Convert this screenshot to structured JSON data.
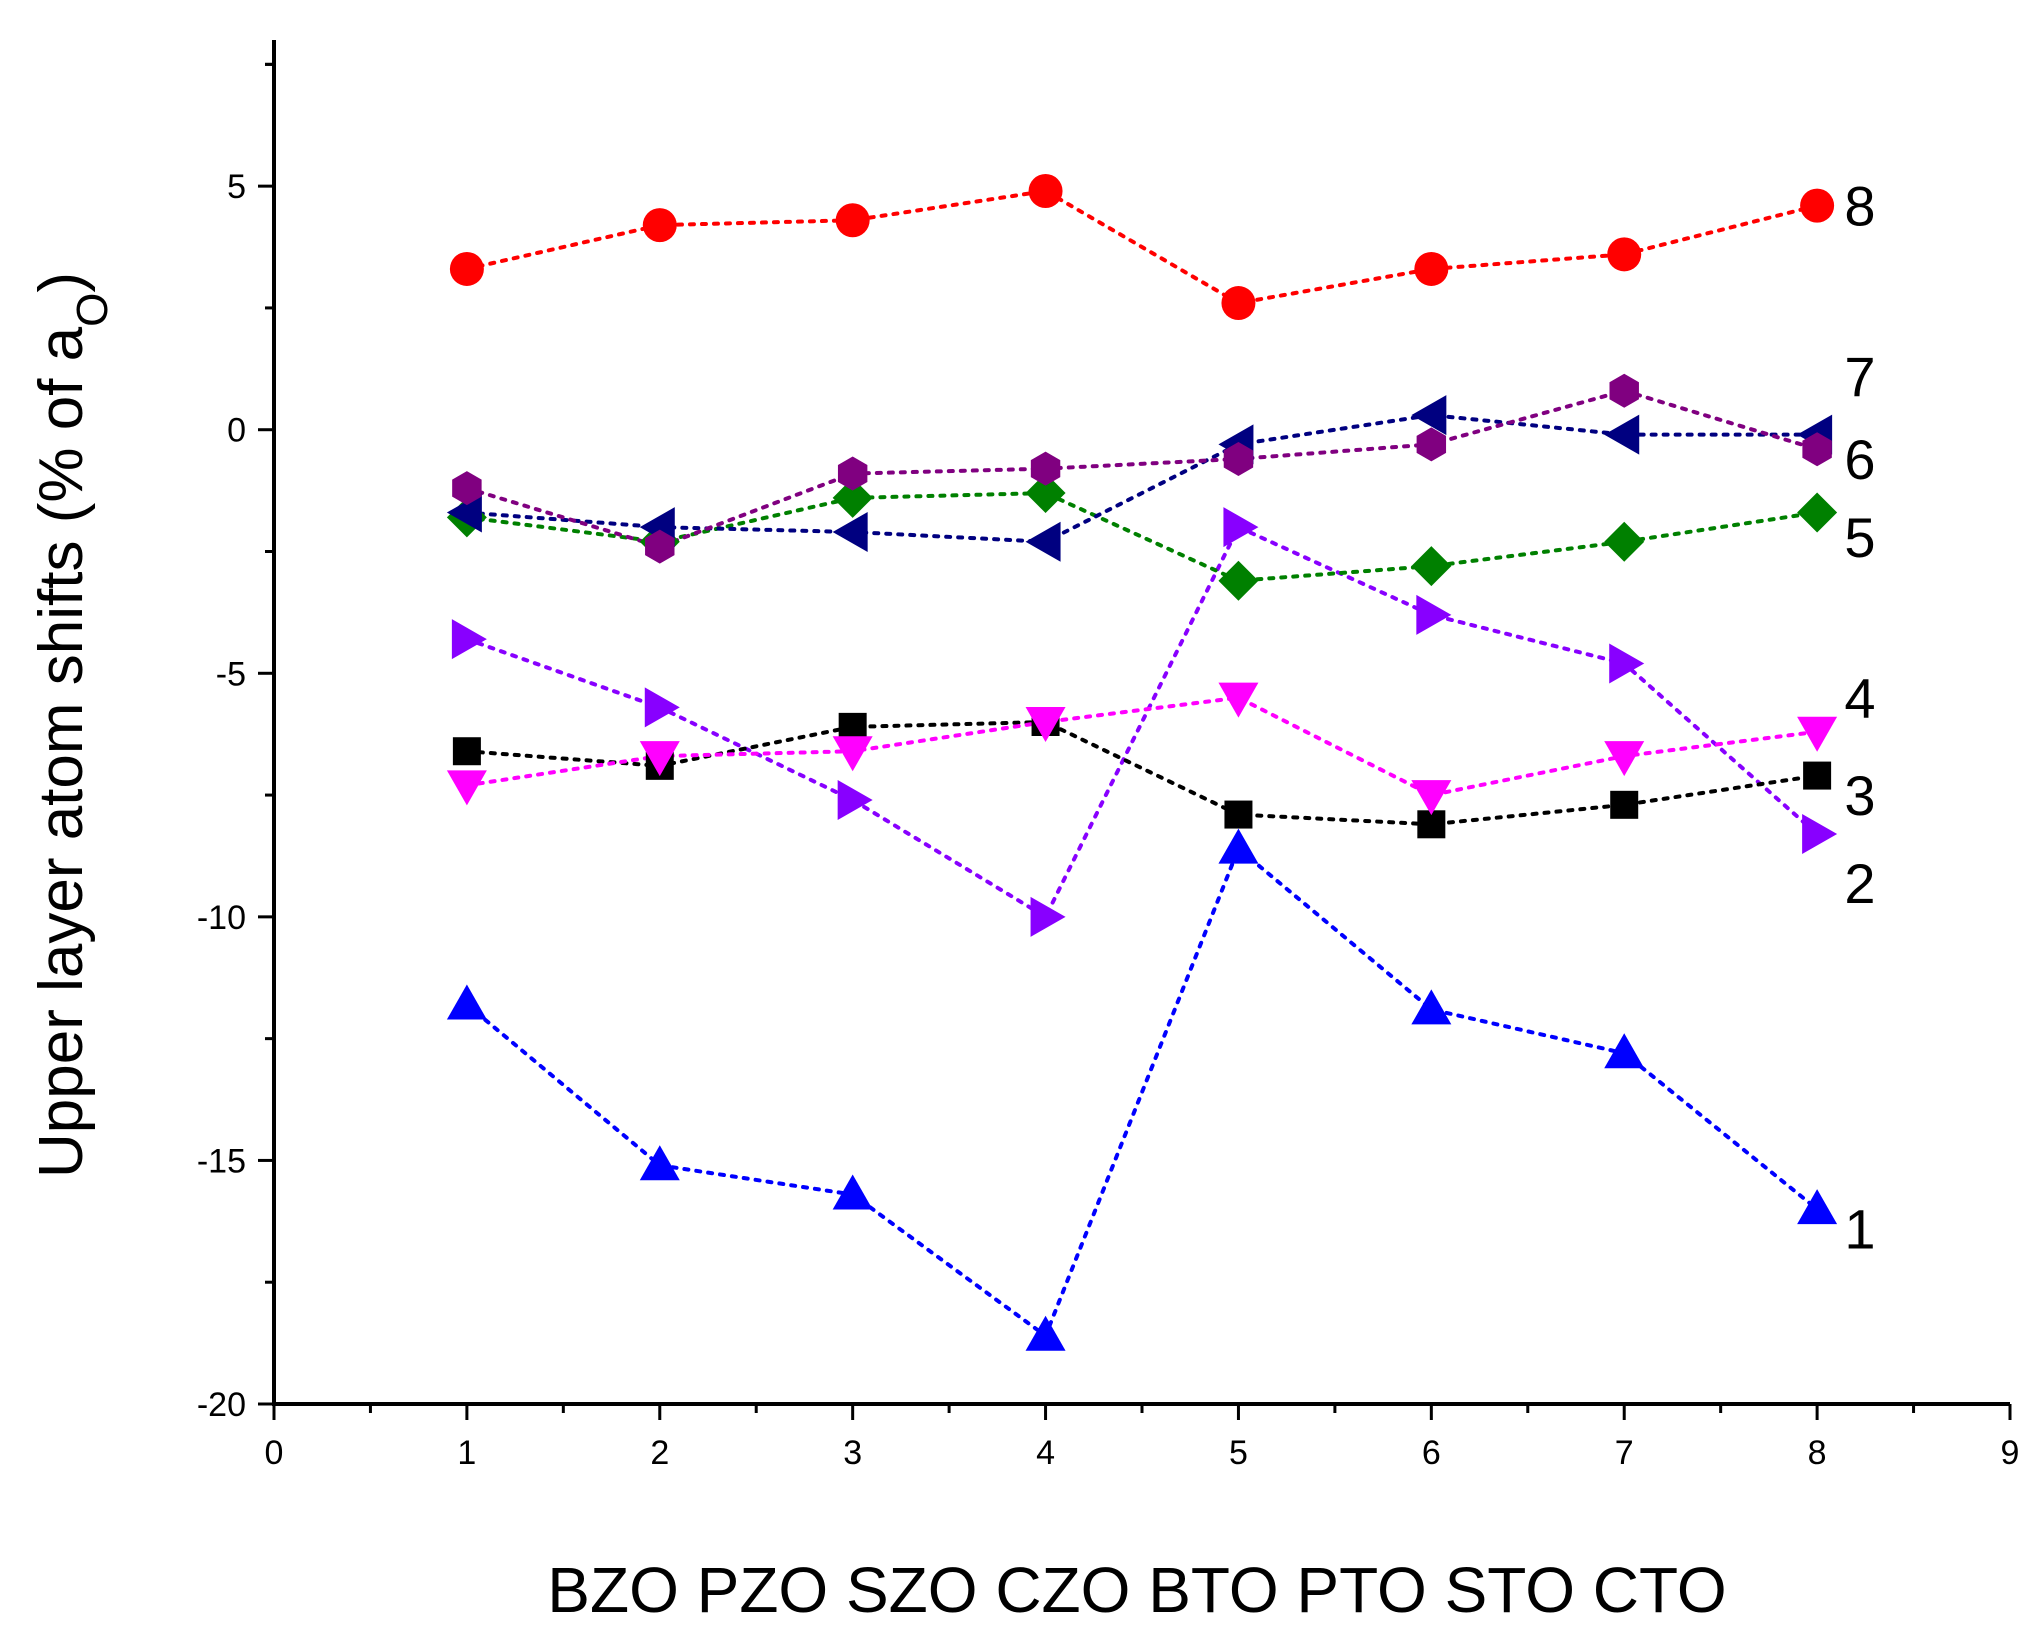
{
  "chart_data": {
    "type": "scatter",
    "title": "",
    "ylabel": "Upper layer atom shifts (% of a",
    "ylabel_subscript": "O",
    "ylabel_close": ")",
    "xlabel": "BZO PZO SZO CZO BTO PTO STO CTO",
    "xlim": [
      0,
      9
    ],
    "ylim": [
      -20,
      8
    ],
    "x_ticks": [
      "0",
      "1",
      "2",
      "3",
      "4",
      "5",
      "6",
      "7",
      "8",
      "9"
    ],
    "y_ticks": [
      "5",
      "0",
      "-5",
      "-10",
      "-15",
      "-20"
    ],
    "x": [
      1,
      2,
      3,
      4,
      5,
      6,
      7,
      8
    ],
    "series": [
      {
        "name": "1",
        "marker": "triangle-up",
        "color": "#0000ff",
        "values": [
          -11.8,
          -15.1,
          -15.7,
          -18.6,
          -8.6,
          -11.9,
          -12.8,
          -16.0
        ]
      },
      {
        "name": "2",
        "marker": "triangle-right",
        "color": "#8800ff",
        "values": [
          -4.3,
          -5.7,
          -7.6,
          -10.0,
          -2.0,
          -3.8,
          -4.8,
          -8.3
        ]
      },
      {
        "name": "3",
        "marker": "square",
        "color": "#000000",
        "values": [
          -6.6,
          -6.9,
          -6.1,
          -6.0,
          -7.9,
          -8.1,
          -7.7,
          -7.1
        ]
      },
      {
        "name": "4",
        "marker": "triangle-down",
        "color": "#ff00ff",
        "values": [
          -7.3,
          -6.7,
          -6.6,
          -6.0,
          -5.5,
          -7.5,
          -6.7,
          -6.2
        ]
      },
      {
        "name": "5",
        "marker": "diamond",
        "color": "#008000",
        "values": [
          -1.8,
          -2.3,
          -1.4,
          -1.3,
          -3.1,
          -2.8,
          -2.3,
          -1.7
        ]
      },
      {
        "name": "6",
        "marker": "triangle-left",
        "color": "#000080",
        "values": [
          -1.7,
          -2.0,
          -2.1,
          -2.3,
          -0.3,
          0.3,
          -0.1,
          -0.1
        ]
      },
      {
        "name": "7",
        "marker": "hexagon",
        "color": "#800080",
        "values": [
          -1.2,
          -2.4,
          -0.9,
          -0.8,
          -0.6,
          -0.3,
          0.8,
          -0.4
        ]
      },
      {
        "name": "8",
        "marker": "circle",
        "color": "#ff0000",
        "values": [
          3.3,
          4.2,
          4.3,
          4.9,
          2.6,
          3.3,
          3.6,
          4.6
        ]
      }
    ],
    "series_labels": [
      {
        "text": "8",
        "y": 4.6
      },
      {
        "text": "7",
        "y": 1.1
      },
      {
        "text": "6",
        "y": -0.6
      },
      {
        "text": "5",
        "y": -2.2
      },
      {
        "text": "4",
        "y": -5.5
      },
      {
        "text": "3",
        "y": -7.5
      },
      {
        "text": "2",
        "y": -9.3
      },
      {
        "text": "1",
        "y": -16.4
      }
    ]
  }
}
